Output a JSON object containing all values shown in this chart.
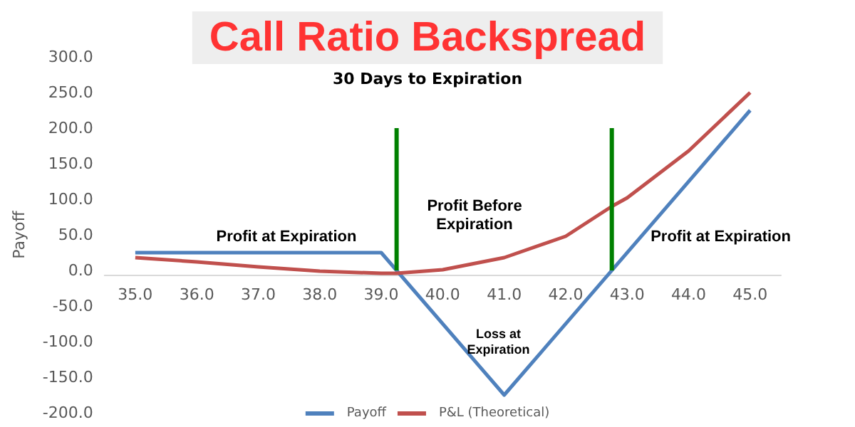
{
  "chart_data": {
    "type": "line",
    "title": "Call Ratio Backspread",
    "subtitle": "30 Days to Expiration",
    "ylabel": "Payoff",
    "xlim": [
      34.5,
      45.5
    ],
    "xticks": [
      {
        "value": 35,
        "label": "35.0"
      },
      {
        "value": 36,
        "label": "36.0"
      },
      {
        "value": 37,
        "label": "37.0"
      },
      {
        "value": 38,
        "label": "38.0"
      },
      {
        "value": 39,
        "label": "39.0"
      },
      {
        "value": 40,
        "label": "40.0"
      },
      {
        "value": 41,
        "label": "41.0"
      },
      {
        "value": 42,
        "label": "42.0"
      },
      {
        "value": 43,
        "label": "43.0"
      },
      {
        "value": 44,
        "label": "44.0"
      },
      {
        "value": 45,
        "label": "45.0"
      }
    ],
    "ylim": [
      -200,
      300
    ],
    "yticks": [
      {
        "value": -200,
        "label": "-200.0"
      },
      {
        "value": -150,
        "label": "-150.0"
      },
      {
        "value": -100,
        "label": "-100.0"
      },
      {
        "value": -50,
        "label": "-50.0"
      },
      {
        "value": 0,
        "label": "0.0"
      },
      {
        "value": 50,
        "label": "50.0"
      },
      {
        "value": 100,
        "label": "100.0"
      },
      {
        "value": 150,
        "label": "150.0"
      },
      {
        "value": 200,
        "label": "200.0"
      },
      {
        "value": 250,
        "label": "250.0"
      },
      {
        "value": 300,
        "label": "300.0"
      }
    ],
    "series": [
      {
        "name": "Payoff",
        "color": "#4f81bd",
        "x": [
          35,
          39,
          41,
          45
        ],
        "values": [
          25,
          25,
          -175,
          225
        ]
      },
      {
        "name": "P&L (Theoretical)",
        "color": "#c0504d",
        "x": [
          35,
          36,
          37,
          38,
          39,
          39.25,
          40,
          41,
          42,
          42.75,
          43,
          44,
          45
        ],
        "values": [
          18,
          12,
          5,
          -1,
          -4,
          -4,
          1,
          18,
          48,
          90,
          102,
          168,
          250
        ]
      },
      {
        "color": "#008000",
        "x": [
          39.25,
          39.25
        ],
        "values": [
          0,
          200
        ]
      },
      {
        "color": "#008000",
        "x": [
          42.75,
          42.75
        ],
        "values": [
          0,
          200
        ]
      }
    ],
    "annotations": [
      "Profit at Expiration",
      "Profit Before\nExpiration",
      "Loss at\nExpiration",
      "Profit at Expiration"
    ],
    "grid": false,
    "legend": "bottom",
    "marker": "none",
    "line_style": "solid"
  }
}
